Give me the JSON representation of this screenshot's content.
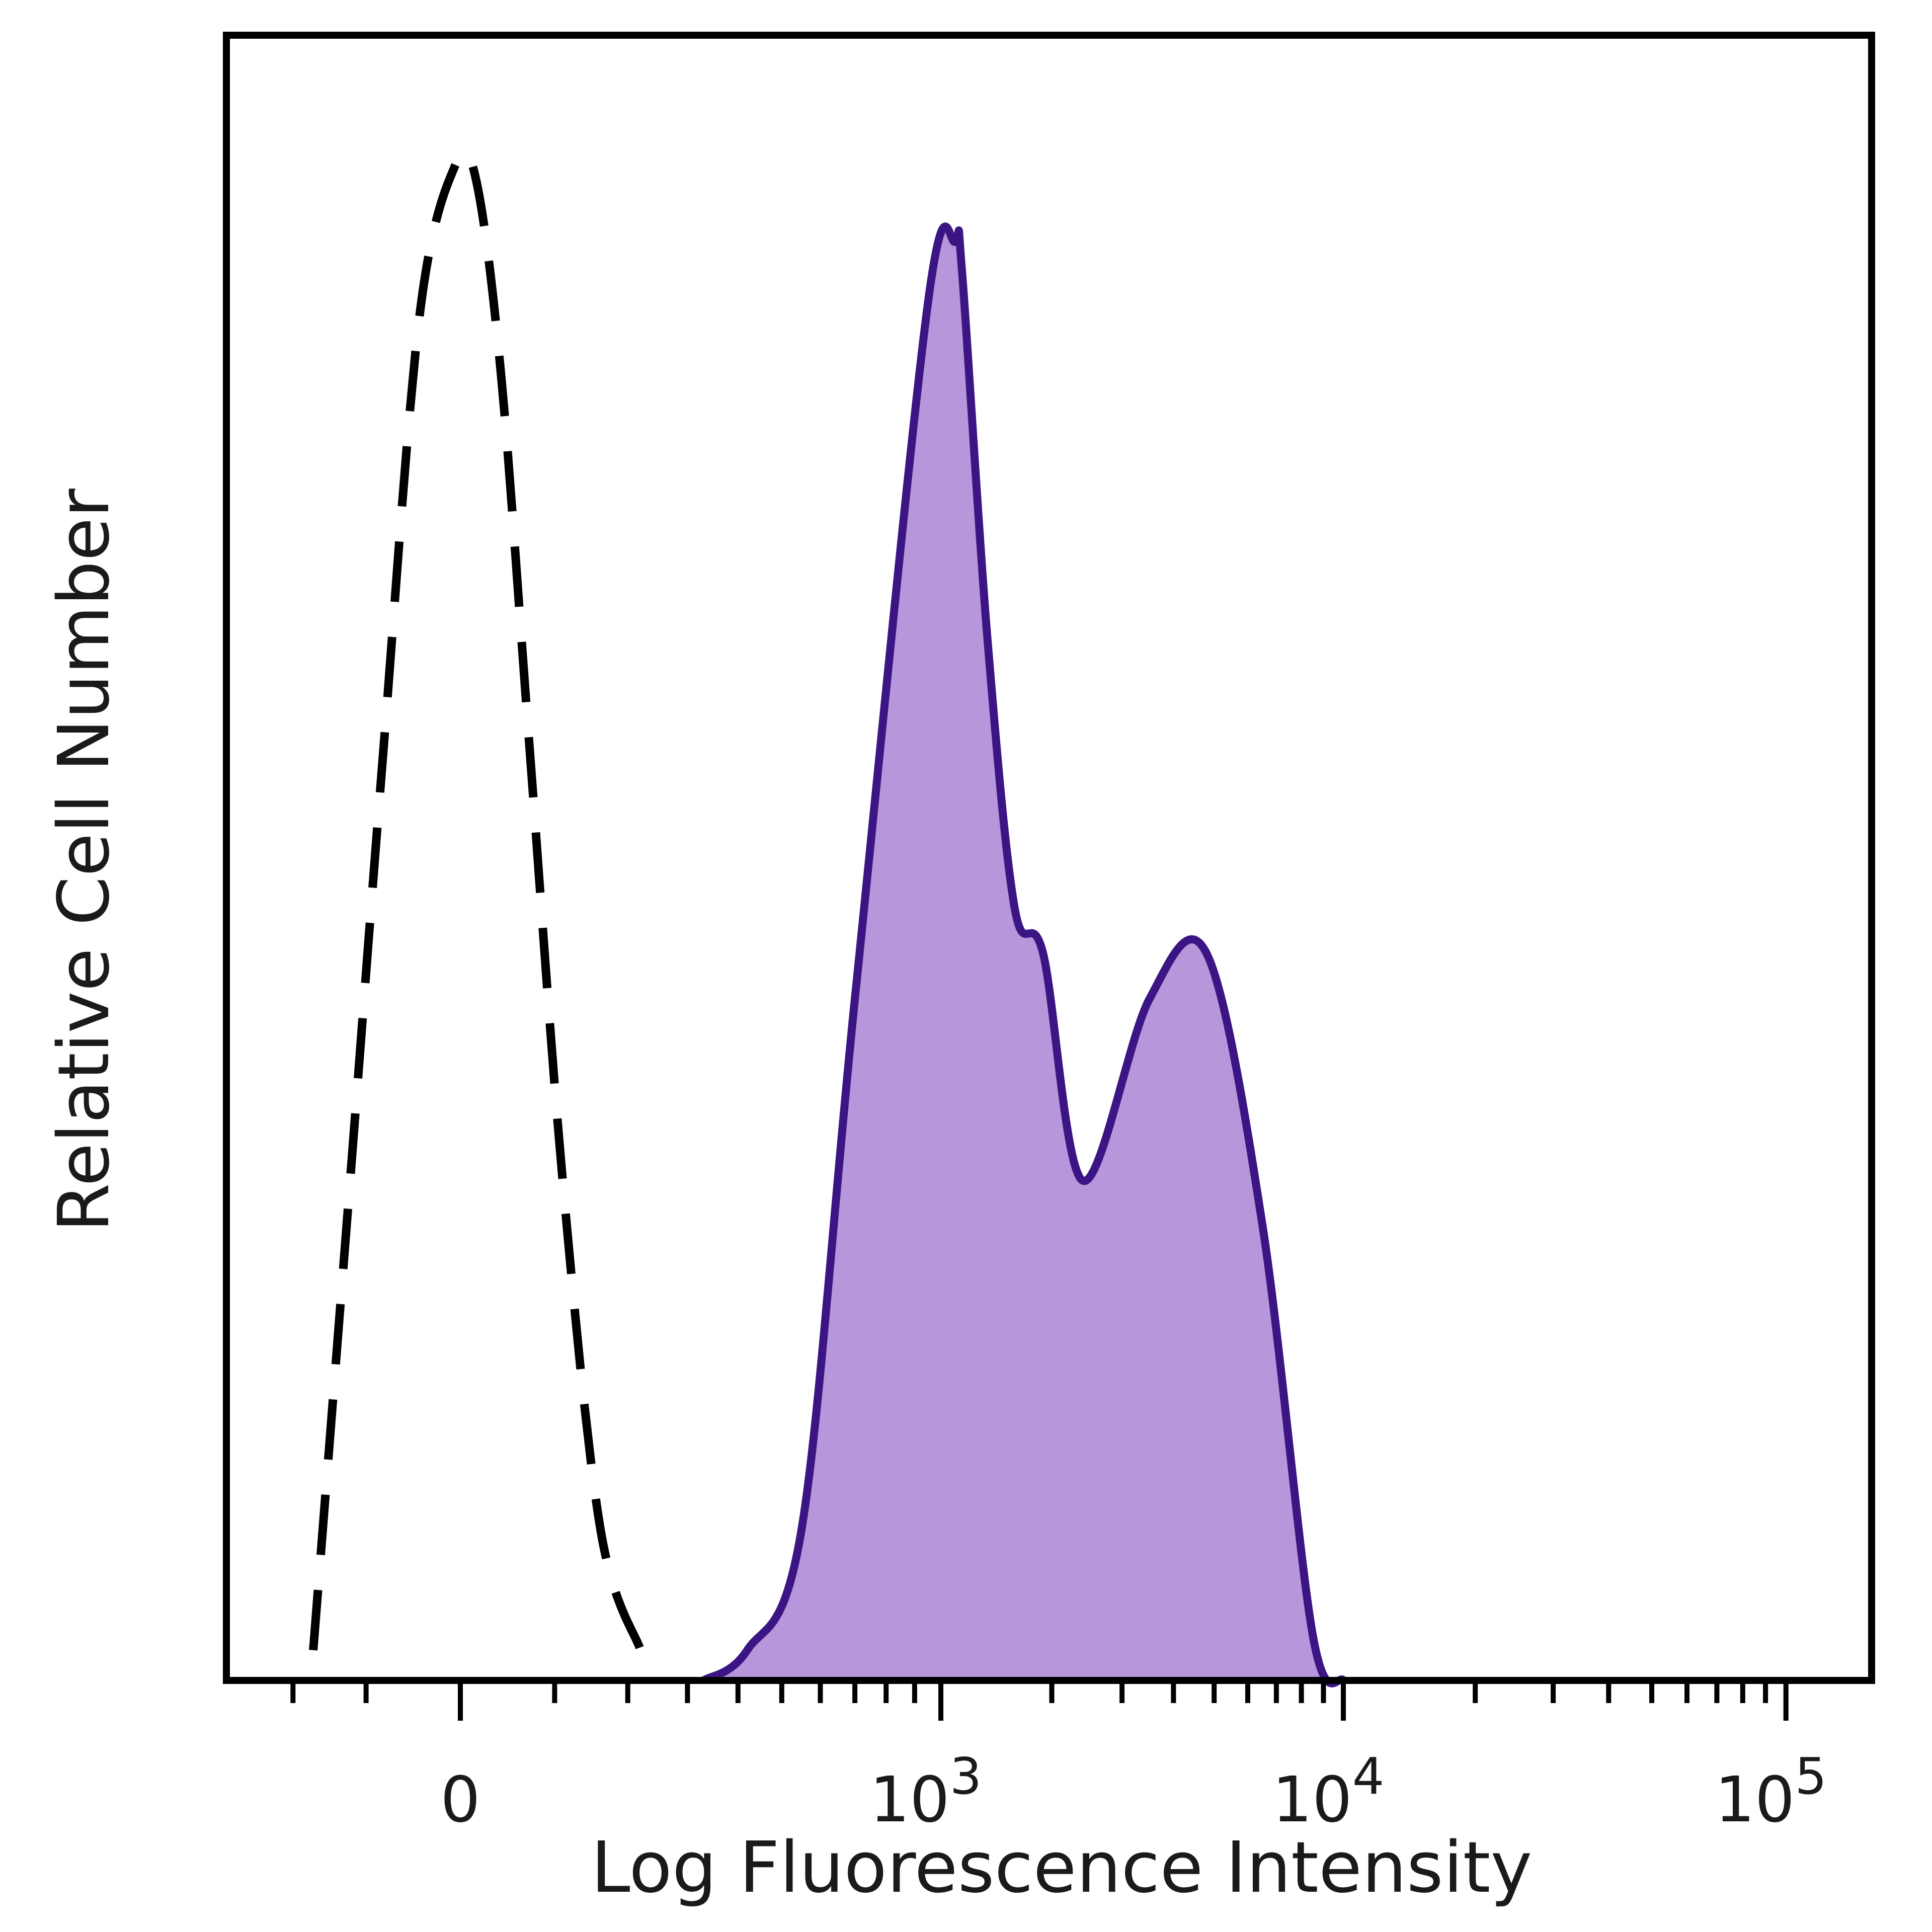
{
  "chart_data": {
    "type": "area",
    "xlabel": "Log Fluorescence Intensity",
    "ylabel": "Relative Cell Number",
    "x_scale": "biexponential",
    "y_ticks_shown": false,
    "grid": false,
    "legend": "none",
    "x_tick_labels": [
      {
        "value": 0,
        "label": "0"
      },
      {
        "value": 1000,
        "label": "10",
        "exp": "3"
      },
      {
        "value": 10000,
        "label": "10",
        "exp": "4"
      },
      {
        "value": 100000,
        "label": "10",
        "exp": "5"
      }
    ],
    "series": [
      {
        "style": "dashed",
        "color": "#000000",
        "points": [
          [
            -170,
            0.02
          ],
          [
            -120,
            0.33
          ],
          [
            -80,
            0.61
          ],
          [
            -40,
            0.9
          ],
          [
            -5,
            1.0
          ],
          [
            15,
            0.99
          ],
          [
            40,
            0.86
          ],
          [
            70,
            0.62
          ],
          [
            110,
            0.33
          ],
          [
            160,
            0.1
          ],
          [
            220,
            0.02
          ]
        ]
      },
      {
        "style": "filled",
        "color": "#3b1583",
        "fill": "#b896dc",
        "points": [
          [
            330,
            0.0
          ],
          [
            420,
            0.02
          ],
          [
            550,
            0.1
          ],
          [
            700,
            0.45
          ],
          [
            950,
            0.91
          ],
          [
            1100,
            0.95
          ],
          [
            1150,
            0.93
          ],
          [
            1350,
            0.69
          ],
          [
            1600,
            0.51
          ],
          [
            1900,
            0.48
          ],
          [
            2400,
            0.33
          ],
          [
            3500,
            0.45
          ],
          [
            4800,
            0.48
          ],
          [
            6500,
            0.3
          ],
          [
            8500,
            0.03
          ],
          [
            10000,
            0.0
          ]
        ]
      }
    ]
  },
  "colors": {
    "filled_fill": "#b896dc",
    "filled_line": "#3b1583",
    "dashed_line": "#000000"
  }
}
